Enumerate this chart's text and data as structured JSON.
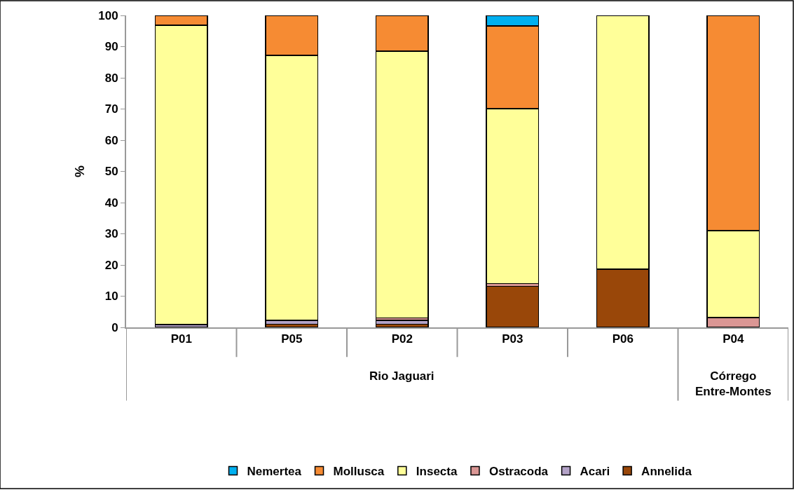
{
  "chart_data": {
    "type": "bar",
    "stacked": true,
    "ylabel": "%",
    "categories": [
      "P01",
      "P05",
      "P02",
      "P03",
      "P06",
      "P04"
    ],
    "series": [
      {
        "name": "Annelida",
        "color": "#994709",
        "values": [
          null,
          1,
          1,
          13.2,
          18.7,
          null
        ]
      },
      {
        "name": "Acari",
        "color": "#b3a2c7",
        "values": [
          0.9,
          1.2,
          1.2,
          null,
          null,
          null
        ]
      },
      {
        "name": "Ostracoda",
        "color": "#da9694",
        "values": [
          null,
          null,
          0.8,
          0.8,
          null,
          3.1
        ]
      },
      {
        "name": "Insecta",
        "color": "#ffff99",
        "values": [
          95.9,
          85,
          85.5,
          56.1,
          81.3,
          27.9
        ]
      },
      {
        "name": "Mollusca",
        "color": "#f68b33",
        "values": [
          3.2,
          12.8,
          11.5,
          26.5,
          null,
          69
        ]
      },
      {
        "name": "Nemertea",
        "color": "#00b0f0",
        "values": [
          null,
          null,
          null,
          3.4,
          null,
          null
        ]
      }
    ],
    "ylim": [
      0,
      100
    ],
    "yticks": [
      0,
      10,
      20,
      30,
      40,
      50,
      60,
      70,
      80,
      90,
      100
    ],
    "annotations": [
      "Rio Jaguari",
      "Córrego\nEntre-Montes"
    ],
    "legend": "bottom"
  }
}
